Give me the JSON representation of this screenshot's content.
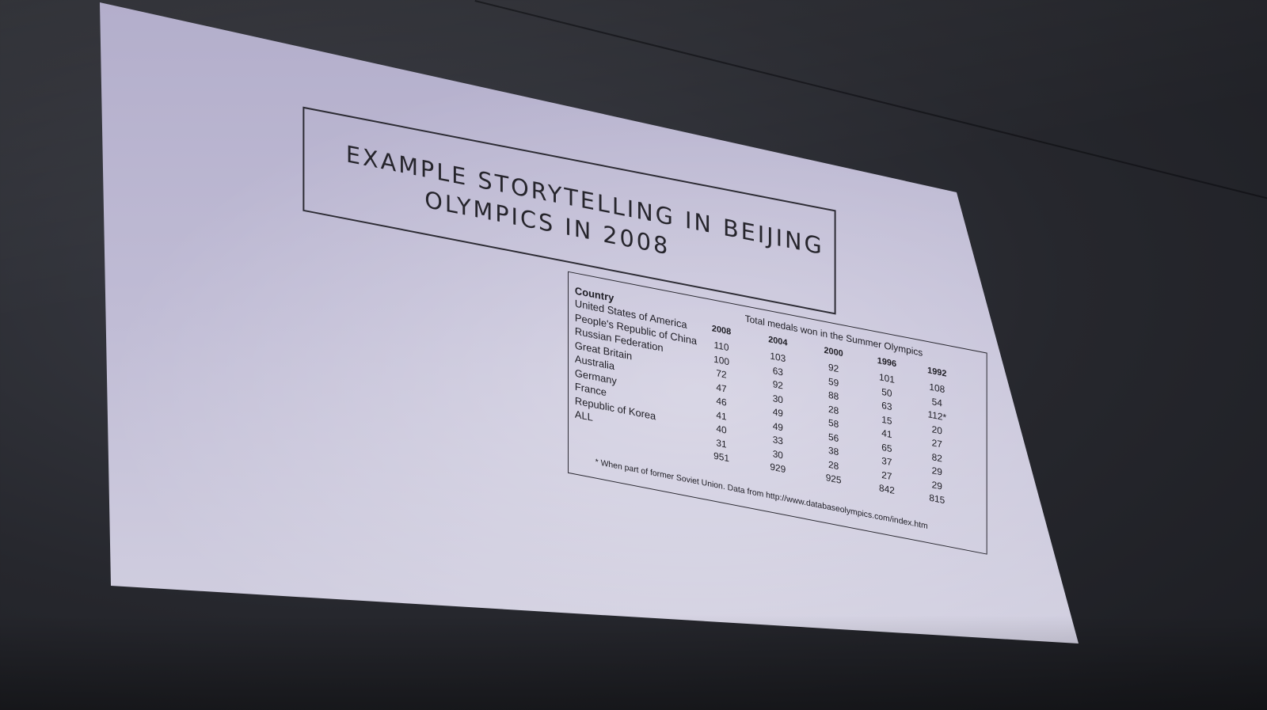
{
  "slide": {
    "title_line1": "EXAMPLE STORYTELLING IN BEIJING",
    "title_line2": "OLYMPICS IN 2008"
  },
  "table": {
    "country_header": "Country",
    "caption": "Total medals won in the Summer Olympics",
    "years": [
      "2008",
      "2004",
      "2000",
      "1996",
      "1992"
    ],
    "rows": [
      {
        "country": "United States of America",
        "values": [
          "110",
          "103",
          "92",
          "101",
          "108"
        ]
      },
      {
        "country": "People's Republic of China",
        "values": [
          "100",
          "63",
          "59",
          "50",
          "54"
        ]
      },
      {
        "country": "Russian Federation",
        "values": [
          "72",
          "92",
          "88",
          "63",
          "112*"
        ]
      },
      {
        "country": "Great Britain",
        "values": [
          "47",
          "30",
          "28",
          "15",
          "20"
        ]
      },
      {
        "country": "Australia",
        "values": [
          "46",
          "49",
          "58",
          "41",
          "27"
        ]
      },
      {
        "country": "Germany",
        "values": [
          "41",
          "49",
          "56",
          "65",
          "82"
        ]
      },
      {
        "country": "France",
        "values": [
          "40",
          "33",
          "38",
          "37",
          "29"
        ]
      },
      {
        "country": "Republic of Korea",
        "values": [
          "31",
          "30",
          "28",
          "27",
          "29"
        ]
      },
      {
        "country": "ALL",
        "values": [
          "951",
          "929",
          "925",
          "842",
          "815"
        ]
      }
    ],
    "footnote": "* When part of former Soviet Union. Data from http://www.databaseolympics.com/index.htm"
  },
  "colors": {
    "screen": "#c0bcd5",
    "ink": "#26252c",
    "room": "#26272d"
  }
}
